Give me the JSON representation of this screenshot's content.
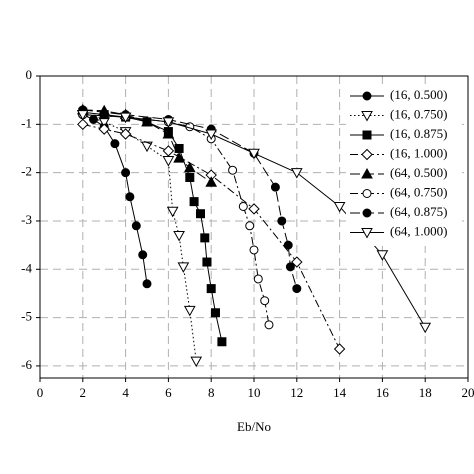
{
  "chart_data": {
    "type": "line",
    "x_label": "Eb/No",
    "xlim": [
      0,
      20
    ],
    "ylim": [
      -6.25,
      0
    ],
    "xticks": [
      0,
      2,
      4,
      6,
      8,
      10,
      12,
      14,
      16,
      18,
      20
    ],
    "yticks": [
      0,
      -1,
      -2,
      -3,
      -4,
      -5,
      -6
    ],
    "grid": true,
    "legend": "upper right",
    "series": [
      {
        "name": "(16, 0.500)",
        "color": "#000000",
        "marker": "circle",
        "filled": true,
        "dash": "solid",
        "x": [
          2,
          2.5,
          3,
          3.5,
          4,
          4.2,
          4.5,
          4.8,
          5
        ],
        "values": [
          -0.8,
          -0.9,
          -1.05,
          -1.4,
          -2.0,
          -2.5,
          -3.1,
          -3.7,
          -4.3
        ]
      },
      {
        "name": "(16, 0.750)",
        "color": "#000000",
        "marker": "triangle-down",
        "filled": false,
        "dash": "dotted",
        "x": [
          2,
          3,
          4,
          5,
          6,
          6.2,
          6.5,
          6.7,
          7,
          7.3
        ],
        "values": [
          -0.8,
          -0.95,
          -1.15,
          -1.45,
          -1.75,
          -2.8,
          -3.3,
          -3.95,
          -4.85,
          -5.9
        ]
      },
      {
        "name": "(16, 0.875)",
        "color": "#000000",
        "marker": "square",
        "filled": true,
        "dash": "solid",
        "x": [
          2,
          3,
          4,
          5,
          6,
          6.5,
          7,
          7.2,
          7.5,
          7.7,
          7.8,
          8,
          8.2,
          8.5
        ],
        "values": [
          -0.75,
          -0.8,
          -0.85,
          -0.95,
          -1.15,
          -1.5,
          -2.1,
          -2.6,
          -2.85,
          -3.35,
          -3.85,
          -4.4,
          -4.9,
          -5.5
        ]
      },
      {
        "name": "(16, 1.000)",
        "color": "#000000",
        "marker": "diamond",
        "filled": false,
        "dash": "dashdot",
        "x": [
          2,
          3,
          4,
          6,
          8,
          10,
          12,
          14
        ],
        "values": [
          -1.0,
          -1.1,
          -1.2,
          -1.55,
          -2.05,
          -2.75,
          -3.85,
          -5.65
        ]
      },
      {
        "name": "(64, 0.500)",
        "color": "#000000",
        "marker": "triangle-up",
        "filled": true,
        "dash": "longdash",
        "x": [
          2,
          3,
          4,
          5,
          6,
          6.5,
          7,
          8
        ],
        "values": [
          -0.7,
          -0.72,
          -0.8,
          -0.95,
          -1.2,
          -1.7,
          -1.9,
          -2.2
        ]
      },
      {
        "name": "(64, 0.750)",
        "color": "#000000",
        "marker": "circle",
        "filled": false,
        "dash": "dashdot",
        "x": [
          2,
          4,
          6,
          7,
          8,
          9,
          9.5,
          9.8,
          10,
          10.2,
          10.5,
          10.7
        ],
        "values": [
          -0.8,
          -0.85,
          -0.95,
          -1.05,
          -1.3,
          -1.95,
          -2.7,
          -3.1,
          -3.6,
          -4.2,
          -4.65,
          -5.15
        ]
      },
      {
        "name": "(64, 0.875)",
        "color": "#000000",
        "marker": "circle",
        "filled": true,
        "dash": "longdash",
        "x": [
          2,
          4,
          6,
          8,
          10,
          11,
          11.3,
          11.6,
          11.7,
          12
        ],
        "values": [
          -0.7,
          -0.8,
          -0.9,
          -1.1,
          -1.6,
          -2.3,
          -3.0,
          -3.5,
          -3.95,
          -4.4
        ]
      },
      {
        "name": "(64, 1.000)",
        "color": "#000000",
        "marker": "triangle-down",
        "filled": false,
        "dash": "solid",
        "x": [
          2,
          4,
          6,
          8,
          10,
          12,
          14,
          16,
          18
        ],
        "values": [
          -0.8,
          -0.85,
          -0.95,
          -1.2,
          -1.6,
          -2.0,
          -2.7,
          -3.7,
          -5.2
        ]
      }
    ]
  }
}
